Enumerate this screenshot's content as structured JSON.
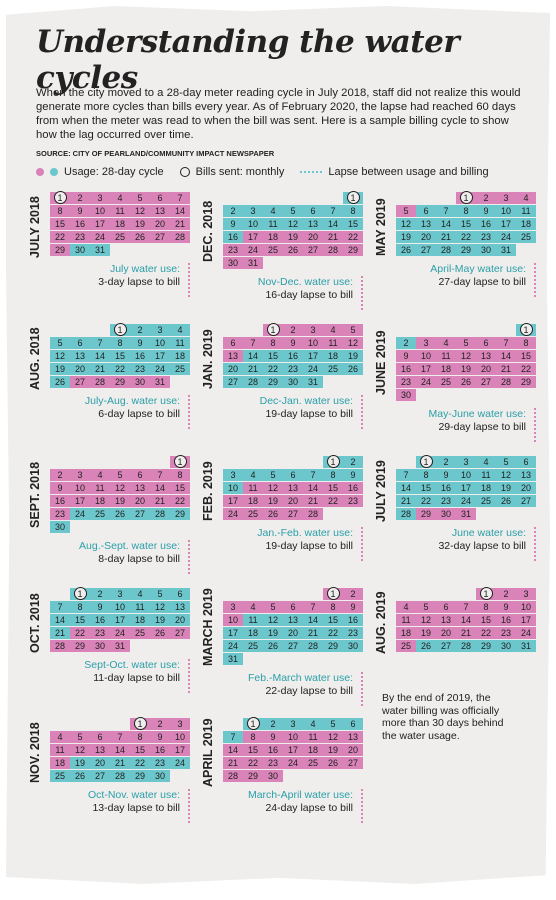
{
  "header": {
    "title": "Understanding the water cycles",
    "intro": "When the city moved to a 28-day meter reading cycle in July 2018, staff did not realize this would generate more cycles than bills every year. As of February 2020, the lapse had reached 60 days from when the meter was read to when the bill was sent. Here is a sample billing cycle to show how the lag occurred over time.",
    "source": "SOURCE: CITY OF PEARLAND/COMMUNITY IMPACT NEWSPAPER"
  },
  "legend": {
    "usage": "Usage: 28-day cycle",
    "bills": "Bills sent: monthly",
    "lapse": "Lapse between usage and billing",
    "colors": [
      "#d983b8",
      "#6cc7cc"
    ]
  },
  "months": [
    {
      "label": "JULY 2018",
      "weeks": [
        [
          1,
          2,
          3,
          4,
          5,
          6,
          7
        ],
        [
          8,
          9,
          10,
          11,
          12,
          13,
          14
        ],
        [
          15,
          16,
          17,
          18,
          19,
          20,
          21
        ],
        [
          22,
          23,
          24,
          25,
          26,
          27,
          28
        ],
        [
          29,
          30,
          31
        ]
      ],
      "bands": [
        {
          "day": 1,
          "color": "#d983b8"
        },
        {
          "day": 30,
          "color": "#6cc7cc"
        }
      ],
      "note": {
        "title": "July water use:",
        "text": "3-day lapse to bill"
      }
    },
    {
      "label": "AUG. 2018",
      "weeks": [
        [
          null,
          null,
          null,
          1,
          2,
          3,
          4
        ],
        [
          5,
          6,
          7,
          8,
          9,
          10,
          11
        ],
        [
          12,
          13,
          14,
          15,
          16,
          17,
          18
        ],
        [
          19,
          20,
          21,
          22,
          23,
          24,
          25
        ],
        [
          26,
          27,
          28,
          29,
          30,
          31
        ]
      ],
      "bands": [
        {
          "day": 1,
          "color": "#6cc7cc"
        },
        {
          "day": 27,
          "color": "#d983b8"
        }
      ],
      "note": {
        "title": "July-Aug. water use:",
        "text": "6-day lapse to bill"
      }
    },
    {
      "label": "SEPT. 2018",
      "weeks": [
        [
          null,
          null,
          null,
          null,
          null,
          null,
          1
        ],
        [
          2,
          3,
          4,
          5,
          6,
          7,
          8
        ],
        [
          9,
          10,
          11,
          12,
          13,
          14,
          15
        ],
        [
          16,
          17,
          18,
          19,
          20,
          21,
          22
        ],
        [
          23,
          24,
          25,
          26,
          27,
          28,
          29
        ],
        [
          30
        ]
      ],
      "bands": [
        {
          "day": 1,
          "color": "#d983b8"
        },
        {
          "day": 24,
          "color": "#6cc7cc"
        }
      ],
      "note": {
        "title": "Aug.-Sept. water use:",
        "text": "8-day lapse to bill"
      }
    },
    {
      "label": "OCT. 2018",
      "weeks": [
        [
          null,
          1,
          2,
          3,
          4,
          5,
          6
        ],
        [
          7,
          8,
          9,
          10,
          11,
          12,
          13
        ],
        [
          14,
          15,
          16,
          17,
          18,
          19,
          20
        ],
        [
          21,
          22,
          23,
          24,
          25,
          26,
          27
        ],
        [
          28,
          29,
          30,
          31
        ]
      ],
      "bands": [
        {
          "day": 1,
          "color": "#6cc7cc"
        },
        {
          "day": 22,
          "color": "#d983b8"
        }
      ],
      "note": {
        "title": "Sept-Oct. water use:",
        "text": "11-day lapse to bill"
      }
    },
    {
      "label": "NOV. 2018",
      "weeks": [
        [
          null,
          null,
          null,
          null,
          1,
          2,
          3
        ],
        [
          4,
          5,
          6,
          7,
          8,
          9,
          10
        ],
        [
          11,
          12,
          13,
          14,
          15,
          16,
          17
        ],
        [
          18,
          19,
          20,
          21,
          22,
          23,
          24
        ],
        [
          25,
          26,
          27,
          28,
          29,
          30
        ]
      ],
      "bands": [
        {
          "day": 1,
          "color": "#d983b8"
        },
        {
          "day": 19,
          "color": "#6cc7cc"
        }
      ],
      "note": {
        "title": "Oct-Nov. water use:",
        "text": "13-day lapse to bill"
      }
    },
    {
      "label": "DEC. 2018",
      "weeks": [
        [
          null,
          null,
          null,
          null,
          null,
          null,
          1
        ],
        [
          2,
          3,
          4,
          5,
          6,
          7,
          8
        ],
        [
          9,
          10,
          11,
          12,
          13,
          14,
          15
        ],
        [
          16,
          17,
          18,
          19,
          20,
          21,
          22
        ],
        [
          23,
          24,
          25,
          26,
          27,
          28,
          29
        ],
        [
          30,
          31
        ]
      ],
      "bands": [
        {
          "day": 1,
          "color": "#6cc7cc"
        },
        {
          "day": 17,
          "color": "#d983b8"
        }
      ],
      "note": {
        "title": "Nov-Dec. water use:",
        "text": "16-day lapse to bill"
      }
    },
    {
      "label": "JAN. 2019",
      "weeks": [
        [
          null,
          null,
          1,
          2,
          3,
          4,
          5
        ],
        [
          6,
          7,
          8,
          9,
          10,
          11,
          12
        ],
        [
          13,
          14,
          15,
          16,
          17,
          18,
          19
        ],
        [
          20,
          21,
          22,
          23,
          24,
          25,
          26
        ],
        [
          27,
          28,
          29,
          30,
          31
        ]
      ],
      "bands": [
        {
          "day": 1,
          "color": "#d983b8"
        },
        {
          "day": 14,
          "color": "#6cc7cc"
        }
      ],
      "note": {
        "title": "Dec-Jan. water use:",
        "text": "19-day lapse to bill"
      }
    },
    {
      "label": "FEB. 2019",
      "weeks": [
        [
          null,
          null,
          null,
          null,
          null,
          1,
          2
        ],
        [
          3,
          4,
          5,
          6,
          7,
          8,
          9
        ],
        [
          10,
          11,
          12,
          13,
          14,
          15,
          16
        ],
        [
          17,
          18,
          19,
          20,
          21,
          22,
          23
        ],
        [
          24,
          25,
          26,
          27,
          28
        ]
      ],
      "bands": [
        {
          "day": 1,
          "color": "#6cc7cc"
        },
        {
          "day": 11,
          "color": "#d983b8"
        }
      ],
      "note": {
        "title": "Jan.-Feb. water use:",
        "text": "19-day lapse to bill"
      }
    },
    {
      "label": "MARCH 2019",
      "weeks": [
        [
          null,
          null,
          null,
          null,
          null,
          1,
          2
        ],
        [
          3,
          4,
          5,
          6,
          7,
          8,
          9
        ],
        [
          10,
          11,
          12,
          13,
          14,
          15,
          16
        ],
        [
          17,
          18,
          19,
          20,
          21,
          22,
          23
        ],
        [
          24,
          25,
          26,
          27,
          28,
          29,
          30
        ],
        [
          31
        ]
      ],
      "bands": [
        {
          "day": 1,
          "color": "#d983b8"
        },
        {
          "day": 11,
          "color": "#6cc7cc"
        }
      ],
      "note": {
        "title": "Feb.-March water use:",
        "text": "22-day lapse to bill"
      }
    },
    {
      "label": "APRIL 2019",
      "weeks": [
        [
          null,
          1,
          2,
          3,
          4,
          5,
          6
        ],
        [
          7,
          8,
          9,
          10,
          11,
          12,
          13
        ],
        [
          14,
          15,
          16,
          17,
          18,
          19,
          20
        ],
        [
          21,
          22,
          23,
          24,
          25,
          26,
          27
        ],
        [
          28,
          29,
          30
        ]
      ],
      "bands": [
        {
          "day": 1,
          "color": "#6cc7cc"
        },
        {
          "day": 8,
          "color": "#d983b8"
        }
      ],
      "note": {
        "title": "March-April water use:",
        "text": "24-day lapse to bill"
      }
    },
    {
      "label": "MAY 2019",
      "weeks": [
        [
          null,
          null,
          null,
          1,
          2,
          3,
          4
        ],
        [
          5,
          6,
          7,
          8,
          9,
          10,
          11
        ],
        [
          12,
          13,
          14,
          15,
          16,
          17,
          18
        ],
        [
          19,
          20,
          21,
          22,
          23,
          24,
          25
        ],
        [
          26,
          27,
          28,
          29,
          30,
          31
        ]
      ],
      "bands": [
        {
          "day": 1,
          "color": "#d983b8"
        },
        {
          "day": 6,
          "color": "#6cc7cc"
        }
      ],
      "note": {
        "title": "April-May water use:",
        "text": "27-day lapse to bill"
      }
    },
    {
      "label": "JUNE 2019",
      "weeks": [
        [
          null,
          null,
          null,
          null,
          null,
          null,
          1
        ],
        [
          2,
          3,
          4,
          5,
          6,
          7,
          8
        ],
        [
          9,
          10,
          11,
          12,
          13,
          14,
          15
        ],
        [
          16,
          17,
          18,
          19,
          20,
          21,
          22
        ],
        [
          23,
          24,
          25,
          26,
          27,
          28,
          29
        ],
        [
          30
        ]
      ],
      "bands": [
        {
          "day": 1,
          "color": "#6cc7cc"
        },
        {
          "day": 3,
          "color": "#d983b8"
        }
      ],
      "note": {
        "title": "May-June water use:",
        "text": "29-day lapse to bill"
      }
    },
    {
      "label": "JULY 2019",
      "weeks": [
        [
          null,
          1,
          2,
          3,
          4,
          5,
          6
        ],
        [
          7,
          8,
          9,
          10,
          11,
          12,
          13
        ],
        [
          14,
          15,
          16,
          17,
          18,
          19,
          20
        ],
        [
          21,
          22,
          23,
          24,
          25,
          26,
          27
        ],
        [
          28,
          29,
          30,
          31
        ]
      ],
      "bands": [
        {
          "day": 1,
          "color": "#6cc7cc"
        },
        {
          "day": 29,
          "color": "#d983b8"
        }
      ],
      "note": {
        "title": "June water use:",
        "text": "32-day lapse to bill"
      }
    },
    {
      "label": "AUG. 2019",
      "weeks": [
        [
          null,
          null,
          null,
          null,
          1,
          2,
          3
        ],
        [
          4,
          5,
          6,
          7,
          8,
          9,
          10
        ],
        [
          11,
          12,
          13,
          14,
          15,
          16,
          17
        ],
        [
          18,
          19,
          20,
          21,
          22,
          23,
          24
        ],
        [
          25,
          26,
          27,
          28,
          29,
          30,
          31
        ]
      ],
      "bands": [
        {
          "day": 1,
          "color": "#d983b8"
        },
        {
          "day": 26,
          "color": "#6cc7cc"
        }
      ]
    }
  ],
  "closing": "By the end of 2019, the water billing was officially more than 30 days behind the water usage."
}
